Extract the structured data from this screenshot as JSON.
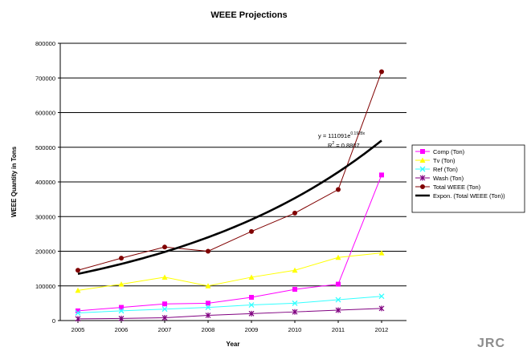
{
  "chart_data": {
    "type": "line",
    "title": "WEEE Projections",
    "xlabel": "Year",
    "ylabel": "WEEE Quantity in Tons",
    "ylim": [
      0,
      800000
    ],
    "y_ticks": [
      "0",
      "100000",
      "200000",
      "300000",
      "400000",
      "500000",
      "600000",
      "700000",
      "800000"
    ],
    "categories": [
      "2005",
      "2006",
      "2007",
      "2008",
      "2009",
      "2010",
      "2011",
      "2012"
    ],
    "grid": "horizontal",
    "legend_position": "right",
    "series": [
      {
        "name": "Comp (Ton)",
        "color": "#ff00ff",
        "marker": "square",
        "values": [
          28000,
          38000,
          48000,
          50000,
          67000,
          90000,
          105000,
          420000
        ]
      },
      {
        "name": "Tv (Ton)",
        "color": "#ffff00",
        "marker": "triangle",
        "values": [
          87000,
          105000,
          125000,
          100000,
          125000,
          145000,
          182000,
          195000
        ]
      },
      {
        "name": "Ref (Ton)",
        "color": "#33ffff",
        "marker": "x",
        "values": [
          22000,
          28000,
          33000,
          38000,
          45000,
          50000,
          60000,
          70000
        ]
      },
      {
        "name": "Wash (Ton)",
        "color": "#800080",
        "marker": "star",
        "values": [
          5000,
          6000,
          8000,
          15000,
          20000,
          25000,
          30000,
          35000
        ]
      },
      {
        "name": "Total WEEE (Ton)",
        "color": "#800000",
        "marker": "circle",
        "values": [
          145000,
          180000,
          212000,
          200000,
          257000,
          310000,
          378000,
          718000
        ]
      }
    ],
    "trendline": {
      "name": "Expon. (Total WEEE (Ton))",
      "color": "#000000",
      "a": 111091,
      "b": 0.1928,
      "equation_main": "y = 111091e",
      "equation_exp": "0.1928x",
      "r2_label": "R",
      "r2_sup": "2",
      "r2_value": " = 0.8807"
    }
  },
  "logo_text": "JRC"
}
